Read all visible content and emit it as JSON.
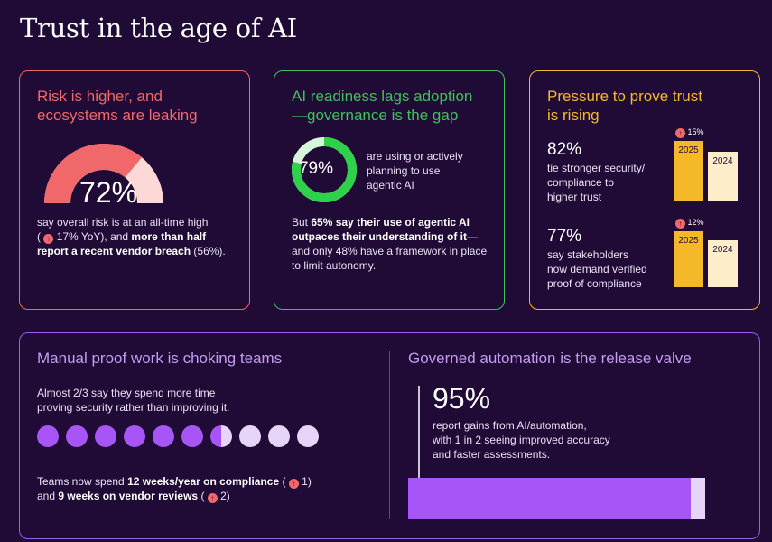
{
  "page": {
    "title": "Trust in the age of AI"
  },
  "risk": {
    "title_line1": "Risk is higher, and",
    "title_line2": "ecosystems are leaking",
    "gauge_value": "72%",
    "gauge_fraction": 0.72,
    "text1": "say overall risk is at an all-time high",
    "yoy": "17% YoY), and ",
    "bold1": "more than half",
    "bold2": "report a recent vendor breach",
    "tail": " (56%).",
    "color_fill": "#f0686a",
    "color_track": "#fcd9d6"
  },
  "ai": {
    "title_line1": "AI readiness lags adoption",
    "title_line2": "—governance is the gap",
    "donut_value": "79%",
    "donut_fraction": 0.79,
    "donut_text1": "are using or actively",
    "donut_text2": "planning to use",
    "donut_text3": "agentic AI",
    "p1_a": "But ",
    "p1_bold": "65% say their use of agentic AI",
    "p2_bold": "outpaces their understanding of it",
    "p2_tail": "—",
    "p3": "and only 48% have a framework in place",
    "p4": "to limit autonomy.",
    "color_fill": "#2fd04a",
    "color_track": "#d6f5d9"
  },
  "pressure": {
    "title_line1": "Pressure to prove trust",
    "title_line2": "is rising",
    "stat1": {
      "value": "82%",
      "line1": "tie stronger security/",
      "line2": "compliance to",
      "line3": "higher trust",
      "change": "15%",
      "label_a": "2025",
      "label_b": "2024"
    },
    "stat2": {
      "value": "77%",
      "line1": "say stakeholders",
      "line2": "now demand verified",
      "line3": "proof of compliance",
      "change": "12%",
      "label_a": "2025",
      "label_b": "2024"
    },
    "color_2025": "#f5b829",
    "color_2024": "#fdeec9"
  },
  "manual": {
    "title": "Manual proof work is choking teams",
    "text1": "Almost 2/3 say they spend more time",
    "text2": "proving security rather than improving it.",
    "dots_fraction": 0.65,
    "dots_total": 10,
    "foot_a": "Teams now spend ",
    "foot_bold1": "12 weeks/year on compliance",
    "foot_b": " ( ",
    "foot_c": " 1)",
    "foot_d": "and ",
    "foot_bold2": "9 weeks on vendor reviews",
    "foot_e": " ( ",
    "foot_f": " 2)"
  },
  "governed": {
    "title": "Governed automation is the release valve",
    "value": "95%",
    "fraction": 0.95,
    "text1": "report gains from AI/automation,",
    "text2": "with 1 in 2 seeing improved accuracy",
    "text3": "and faster assessments."
  }
}
